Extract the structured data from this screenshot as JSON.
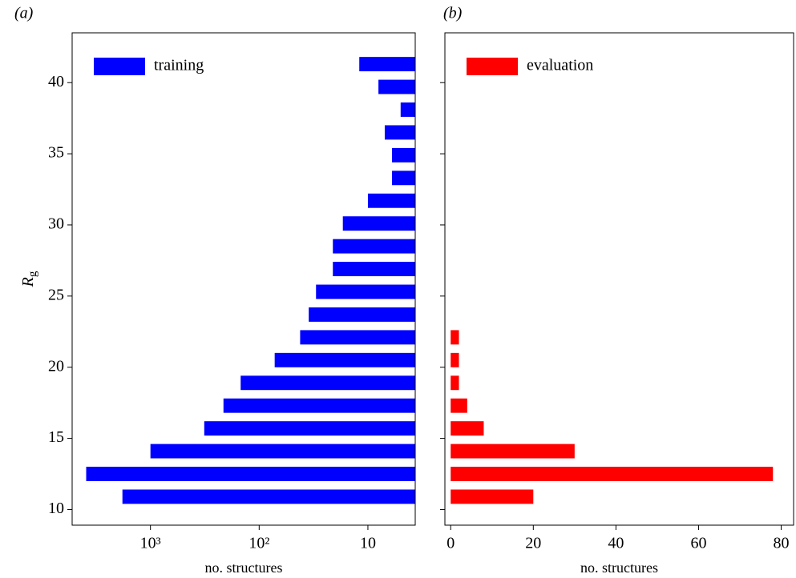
{
  "chart_data": [
    {
      "type": "barh",
      "panel_label": "(a)",
      "xlabel": "no. structures",
      "ylabel": [
        "R",
        "g"
      ],
      "xscale": "log",
      "xlim": [
        5250,
        3.67
      ],
      "xticks": [
        {
          "value": 1000,
          "label": "10³"
        },
        {
          "value": 100,
          "label": "10²"
        },
        10
      ],
      "ylim": [
        8.9,
        43.5
      ],
      "yticks": [
        10,
        15,
        20,
        25,
        30,
        35,
        40
      ],
      "legend": "upper left",
      "grid": false,
      "y": [
        10.9,
        12.5,
        14.1,
        15.7,
        17.3,
        18.9,
        20.5,
        22.1,
        23.7,
        25.3,
        26.9,
        28.5,
        30.1,
        31.7,
        33.3,
        34.9,
        36.5,
        38.1,
        39.7,
        41.3
      ],
      "series": [
        {
          "name": "training",
          "color": "#0000ff",
          "values": [
            1810,
            3900,
            1000,
            320,
            213,
            148,
            72,
            42,
            35,
            30,
            21,
            21,
            17,
            10,
            6,
            6,
            7,
            5,
            8,
            12
          ]
        }
      ]
    },
    {
      "type": "barh",
      "panel_label": "(b)",
      "xlabel": "no. structures",
      "xscale": "linear",
      "xlim": [
        -1.4,
        83
      ],
      "xticks": [
        0,
        20,
        40,
        60,
        80
      ],
      "ylim": [
        8.9,
        43.5
      ],
      "yticks": [
        10,
        15,
        20,
        25,
        30,
        35,
        40
      ],
      "sharey": true,
      "legend": "upper left",
      "grid": false,
      "y": [
        10.9,
        12.5,
        14.1,
        15.7,
        17.3,
        18.9,
        20.5,
        22.1,
        23.7,
        25.3,
        26.9,
        28.5,
        30.1,
        31.7,
        33.3,
        34.9,
        36.5,
        38.1,
        39.7,
        41.3
      ],
      "series": [
        {
          "name": "evaluation",
          "color": "#ff0000",
          "values": [
            20,
            78,
            30,
            8,
            4,
            2,
            2,
            2,
            0,
            0,
            0,
            0,
            0,
            0,
            0,
            0,
            0,
            0,
            0,
            0
          ]
        }
      ]
    }
  ]
}
